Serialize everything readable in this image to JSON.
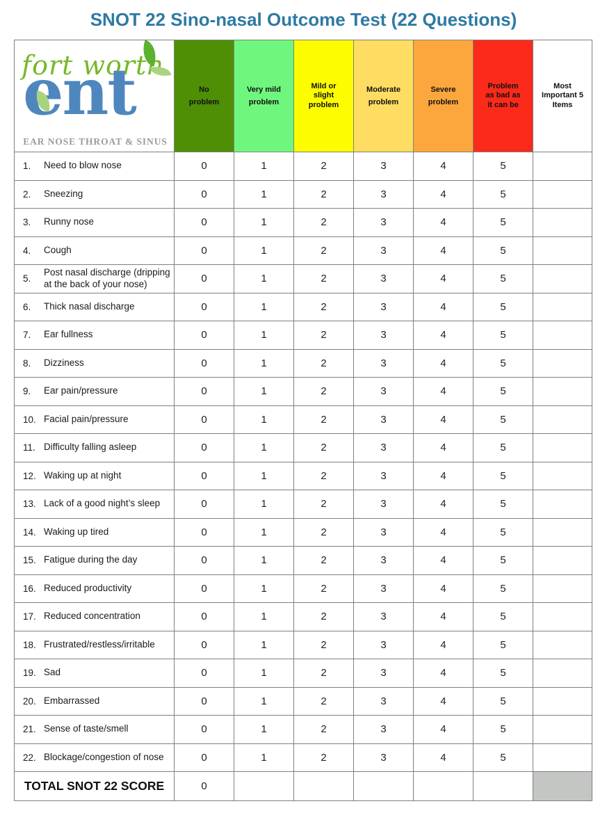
{
  "title": "SNOT 22 Sino-nasal Outcome Test (22 Questions)",
  "logo": {
    "name_top": "fort worth",
    "name_main": "ent",
    "tagline": "EAR NOSE THROAT & SINUS"
  },
  "columns": [
    {
      "label": "No\nproblem",
      "color": "#4e8f05"
    },
    {
      "label": "Very mild\nproblem",
      "color": "#6ff77d"
    },
    {
      "label": "Mild or\nslight\nproblem",
      "color": "#fdfd00"
    },
    {
      "label": "Moderate\nproblem",
      "color": "#fedd62"
    },
    {
      "label": "Severe\nproblem",
      "color": "#fca73d"
    },
    {
      "label": "Problem\nas bad as\nit can be",
      "color": "#fb2a1a"
    },
    {
      "label": "Most\nImportant 5\nItems",
      "color": "#ffffff"
    }
  ],
  "scores": [
    "0",
    "1",
    "2",
    "3",
    "4",
    "5"
  ],
  "questions": [
    {
      "num": "1.",
      "text": "Need to blow nose"
    },
    {
      "num": "2.",
      "text": "Sneezing"
    },
    {
      "num": "3.",
      "text": "Runny nose"
    },
    {
      "num": "4.",
      "text": "Cough"
    },
    {
      "num": "5.",
      "text": "Post nasal discharge (dripping at  the back of your nose)"
    },
    {
      "num": "6.",
      "text": "Thick nasal discharge"
    },
    {
      "num": "7.",
      "text": "Ear fullness"
    },
    {
      "num": "8.",
      "text": "Dizziness"
    },
    {
      "num": "9.",
      "text": "Ear pain/pressure"
    },
    {
      "num": "10.",
      "text": "Facial pain/pressure"
    },
    {
      "num": "11.",
      "text": "Difficulty falling asleep"
    },
    {
      "num": "12.",
      "text": "Waking up at night"
    },
    {
      "num": "13.",
      "text": "Lack of a good night’s sleep"
    },
    {
      "num": "14.",
      "text": "Waking up tired"
    },
    {
      "num": "15.",
      "text": "Fatigue during the day"
    },
    {
      "num": "16.",
      "text": "Reduced productivity"
    },
    {
      "num": "17.",
      "text": "Reduced concentration"
    },
    {
      "num": "18.",
      "text": "Frustrated/restless/irritable"
    },
    {
      "num": "19.",
      "text": "Sad"
    },
    {
      "num": "20.",
      "text": "Embarrassed"
    },
    {
      "num": "21.",
      "text": "Sense of taste/smell"
    },
    {
      "num": "22.",
      "text": "Blockage/congestion of nose"
    }
  ],
  "total": {
    "label": "TOTAL SNOT 22 SCORE",
    "value": "0"
  },
  "colors": {
    "title_accent": "#2e7aa3",
    "table_border": "#7f7f7f",
    "total_blank_cell": "#c4c6c4",
    "logo_green": "#76b82a",
    "logo_blue": "#4e87bd",
    "logo_gray": "#9b9b9b"
  }
}
